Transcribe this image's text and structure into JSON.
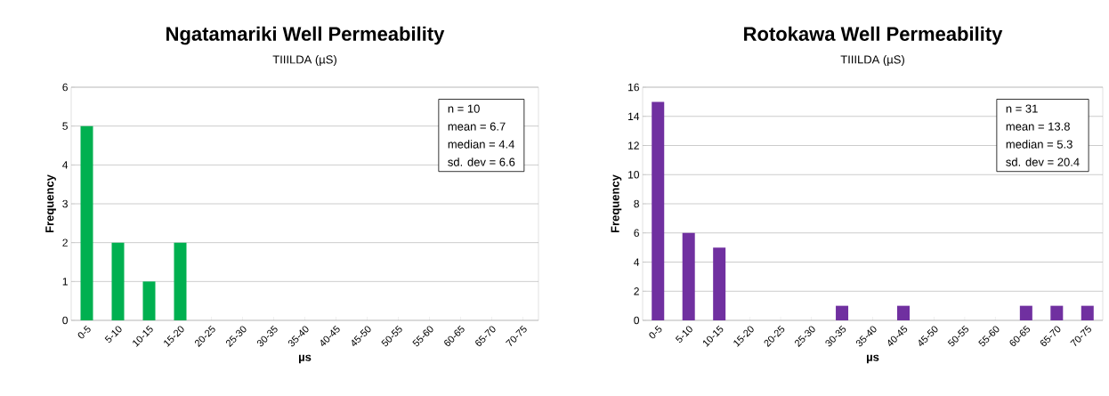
{
  "chart_data": [
    {
      "type": "bar",
      "title": "Ngatamariki Well Permeability",
      "subtitle": "TIIILDA (µS)",
      "xlabel": "µs",
      "ylabel": "Frequency",
      "categories": [
        "0-5",
        "5-10",
        "10-15",
        "15-20",
        "20-25",
        "25-30",
        "30-35",
        "35-40",
        "40-45",
        "45-50",
        "50-55",
        "55-60",
        "60-65",
        "65-70",
        "70-75"
      ],
      "values": [
        5,
        2,
        1,
        2,
        0,
        0,
        0,
        0,
        0,
        0,
        0,
        0,
        0,
        0,
        0
      ],
      "color": "#00b050",
      "ylim": [
        0,
        6
      ],
      "yticks": [
        0,
        1,
        2,
        3,
        4,
        5,
        6
      ],
      "grid": "y",
      "annotations": [
        "n = 10",
        "mean = 6.7",
        "median = 4.4",
        "sd. dev = 6.6"
      ]
    },
    {
      "type": "bar",
      "title": "Rotokawa Well Permeability",
      "subtitle": "TIIILDA (µS)",
      "xlabel": "µs",
      "ylabel": "Frequency",
      "categories": [
        "0-5",
        "5-10",
        "10-15",
        "15-20",
        "20-25",
        "25-30",
        "30-35",
        "35-40",
        "40-45",
        "45-50",
        "50-55",
        "55-60",
        "60-65",
        "65-70",
        "70-75"
      ],
      "values": [
        15,
        6,
        5,
        0,
        0,
        0,
        1,
        0,
        1,
        0,
        0,
        0,
        1,
        1,
        1
      ],
      "color": "#7030a0",
      "ylim": [
        0,
        16
      ],
      "yticks": [
        0,
        2,
        4,
        6,
        8,
        10,
        12,
        14,
        16
      ],
      "grid": "y",
      "annotations": [
        "n = 31",
        "mean = 13.8",
        "median = 5.3",
        "sd. dev = 20.4"
      ]
    }
  ]
}
